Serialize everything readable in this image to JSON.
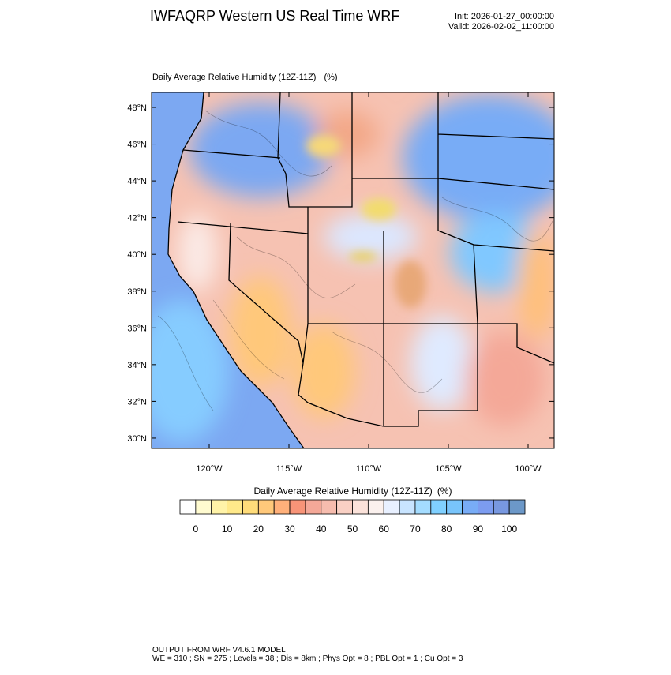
{
  "header": {
    "title": "IWFAQRP Western US Real Time WRF",
    "init": "Init: 2026-01-27_00:00:00",
    "valid": "Valid: 2026-02-02_11:00:00"
  },
  "map": {
    "title": "Daily Average Relative Humidity (12Z-11Z)",
    "units": "(%)",
    "lat_labels": [
      "48°N",
      "46°N",
      "44°N",
      "42°N",
      "40°N",
      "38°N",
      "36°N",
      "34°N",
      "32°N",
      "30°N"
    ],
    "lon_labels": [
      "120°W",
      "115°W",
      "110°W",
      "105°W",
      "100°W"
    ]
  },
  "colorbar": {
    "title": "Daily Average Relative Humidity (12Z-11Z)",
    "units": "(%)",
    "colors": [
      "#ffffff",
      "#fffbd0",
      "#fff3a8",
      "#ffe98a",
      "#ffdc7a",
      "#ffc87a",
      "#ffb07a",
      "#f89478",
      "#f4a898",
      "#f6bcae",
      "#f9d0c4",
      "#fbe2da",
      "#fbf1ee",
      "#e8f0ff",
      "#c8e4ff",
      "#a4dcff",
      "#80d0ff",
      "#78c4fb",
      "#78acf6",
      "#7c9cf0",
      "#7898e0",
      "#6c98c8"
    ],
    "labels": [
      0,
      10,
      20,
      30,
      40,
      50,
      60,
      70,
      80,
      90,
      100
    ]
  },
  "footer": {
    "line1": "OUTPUT FROM WRF V4.6.1 MODEL",
    "line2": "WE = 310 ; SN = 275 ; Levels = 38 ; Dis = 8km ; Phys Opt = 8 ; PBL Opt = 1 ; Cu Opt = 3"
  }
}
